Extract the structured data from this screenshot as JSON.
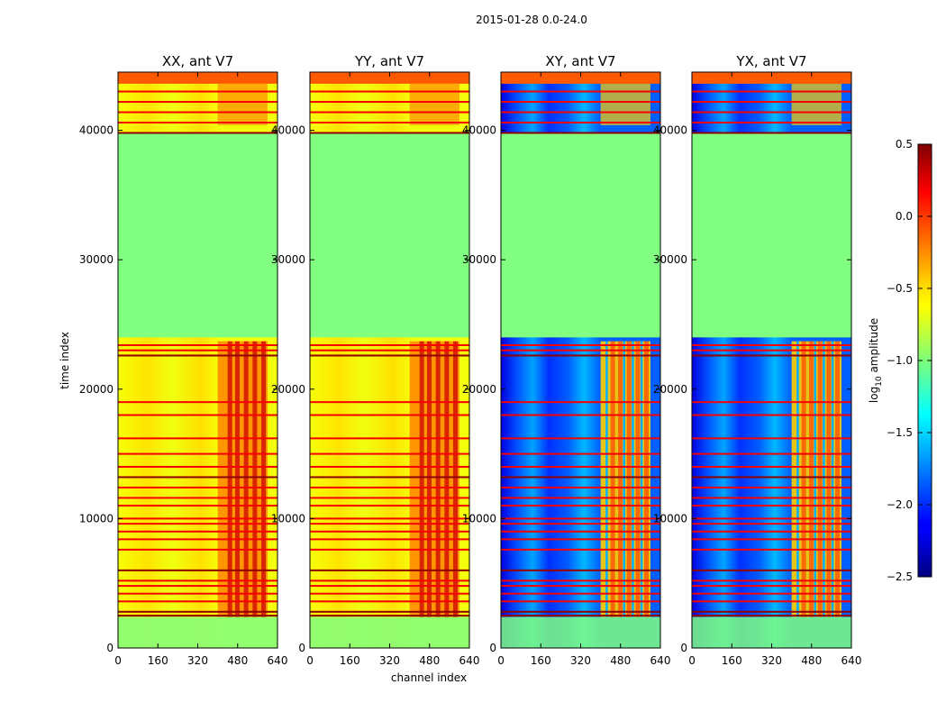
{
  "chart_data": {
    "type": "heatmap",
    "suptitle": "2015-01-28 0.0-24.0",
    "xlabel": "channel index",
    "ylabel": "time index",
    "xlim": [
      0,
      640
    ],
    "ylim": [
      0,
      44500
    ],
    "xticks": [
      0,
      160,
      320,
      480,
      640
    ],
    "yticks": [
      0,
      10000,
      20000,
      30000,
      40000
    ],
    "panels": [
      {
        "title": "XX, ant V7",
        "kind": "parallel"
      },
      {
        "title": "YY, ant V7",
        "kind": "parallel"
      },
      {
        "title": "XY, ant V7",
        "kind": "cross"
      },
      {
        "title": "YX, ant V7",
        "kind": "cross"
      }
    ],
    "colorbar": {
      "label_prefix": "log",
      "label_subscript": "10",
      "label_suffix": " amplitude",
      "range": [
        -2.5,
        0.5
      ],
      "ticks": [
        0.5,
        0.0,
        -0.5,
        -1.0,
        -1.5,
        -2.0,
        -2.5
      ],
      "tick_labels": [
        "0.5",
        "0.0",
        "−0.5",
        "−1.0",
        "−1.5",
        "−2.0",
        "−2.5"
      ],
      "colormap": "jet"
    },
    "flagged_time_range": [
      24000,
      39800
    ],
    "flagged_value": -1.0,
    "active_channel_range": [
      400,
      600
    ],
    "horizontal_lines": [
      {
        "t": 2500,
        "level": "max"
      },
      {
        "t": 2800,
        "level": "max"
      },
      {
        "t": 3600,
        "level": "hi"
      },
      {
        "t": 4200,
        "level": "hi"
      },
      {
        "t": 4800,
        "level": "hi"
      },
      {
        "t": 5200,
        "level": "hi"
      },
      {
        "t": 6000,
        "level": "max"
      },
      {
        "t": 7600,
        "level": "hi"
      },
      {
        "t": 8400,
        "level": "hi"
      },
      {
        "t": 9000,
        "level": "hi"
      },
      {
        "t": 9600,
        "level": "hi"
      },
      {
        "t": 10000,
        "level": "hi"
      },
      {
        "t": 11000,
        "level": "hi"
      },
      {
        "t": 11600,
        "level": "hi"
      },
      {
        "t": 12400,
        "level": "hi"
      },
      {
        "t": 13200,
        "level": "max"
      },
      {
        "t": 14000,
        "level": "hi"
      },
      {
        "t": 15000,
        "level": "hi"
      },
      {
        "t": 16200,
        "level": "hi"
      },
      {
        "t": 18000,
        "level": "hi"
      },
      {
        "t": 19000,
        "level": "hi"
      },
      {
        "t": 22600,
        "level": "max"
      },
      {
        "t": 23000,
        "level": "hi"
      },
      {
        "t": 23400,
        "level": "hi"
      },
      {
        "t": 39800,
        "level": "max"
      },
      {
        "t": 40600,
        "level": "hi"
      },
      {
        "t": 41400,
        "level": "hi"
      },
      {
        "t": 42200,
        "level": "hi"
      },
      {
        "t": 43000,
        "level": "hi"
      }
    ]
  }
}
